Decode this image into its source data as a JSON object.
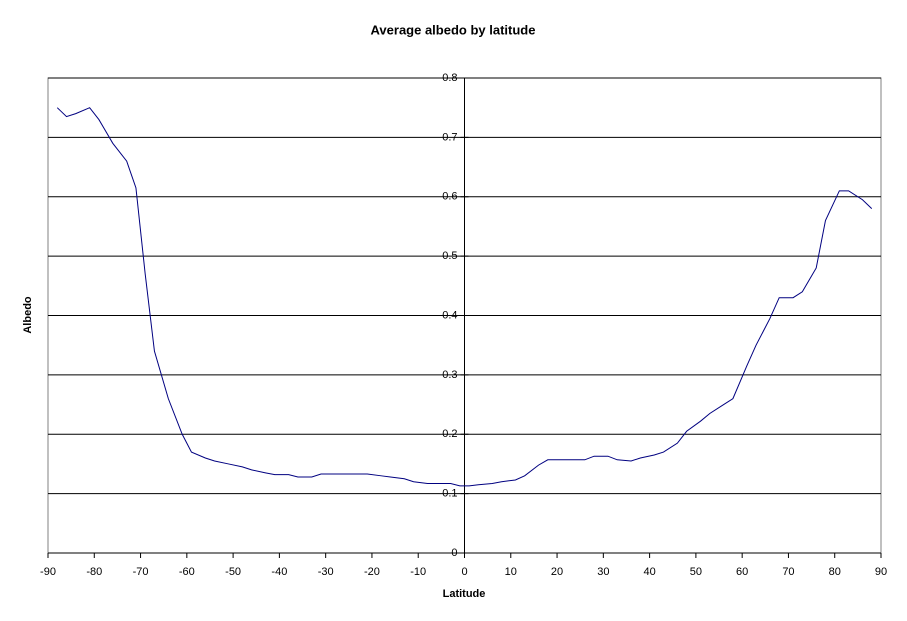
{
  "chart_data": {
    "type": "line",
    "title": "Average albedo by latitude",
    "x_label": "Latitude",
    "y_label": "Albedo",
    "xlim": [
      -90,
      90
    ],
    "xticks": [
      -90,
      -80,
      -70,
      -60,
      -50,
      -40,
      -30,
      -20,
      -10,
      0,
      10,
      20,
      30,
      40,
      50,
      60,
      70,
      80,
      90
    ],
    "ylim": [
      0,
      0.8
    ],
    "yticks": [
      0,
      0.1,
      0.2,
      0.3,
      0.4,
      0.5,
      0.6,
      0.7,
      0.8
    ],
    "grid": true,
    "series": [
      {
        "name": "Albedo",
        "color": "#000080",
        "x": [
          -88,
          -86,
          -84,
          -81,
          -79,
          -76,
          -73,
          -71,
          -69,
          -67,
          -64,
          -61,
          -59,
          -56,
          -54,
          -51,
          -48,
          -46,
          -43,
          -41,
          -38,
          -36,
          -33,
          -31,
          -28,
          -26,
          -23,
          -21,
          -18,
          -16,
          -13,
          -11,
          -8,
          -6,
          -3,
          -1,
          1,
          3,
          6,
          8,
          11,
          13,
          16,
          18,
          21,
          23,
          26,
          28,
          31,
          33,
          36,
          38,
          41,
          43,
          46,
          48,
          51,
          53,
          56,
          58,
          61,
          63,
          66,
          68,
          71,
          73,
          76,
          78,
          81,
          83,
          86,
          88
        ],
        "values": [
          0.75,
          0.735,
          0.74,
          0.75,
          0.73,
          0.69,
          0.66,
          0.615,
          0.47,
          0.34,
          0.26,
          0.2,
          0.17,
          0.16,
          0.155,
          0.15,
          0.145,
          0.14,
          0.135,
          0.132,
          0.132,
          0.128,
          0.128,
          0.133,
          0.133,
          0.133,
          0.133,
          0.133,
          0.13,
          0.128,
          0.125,
          0.12,
          0.117,
          0.117,
          0.117,
          0.113,
          0.113,
          0.115,
          0.117,
          0.12,
          0.123,
          0.13,
          0.148,
          0.157,
          0.157,
          0.157,
          0.157,
          0.163,
          0.163,
          0.157,
          0.155,
          0.16,
          0.165,
          0.17,
          0.185,
          0.205,
          0.222,
          0.235,
          0.25,
          0.26,
          0.315,
          0.35,
          0.395,
          0.43,
          0.43,
          0.44,
          0.48,
          0.56,
          0.61,
          0.61,
          0.595,
          0.58
        ]
      }
    ]
  }
}
